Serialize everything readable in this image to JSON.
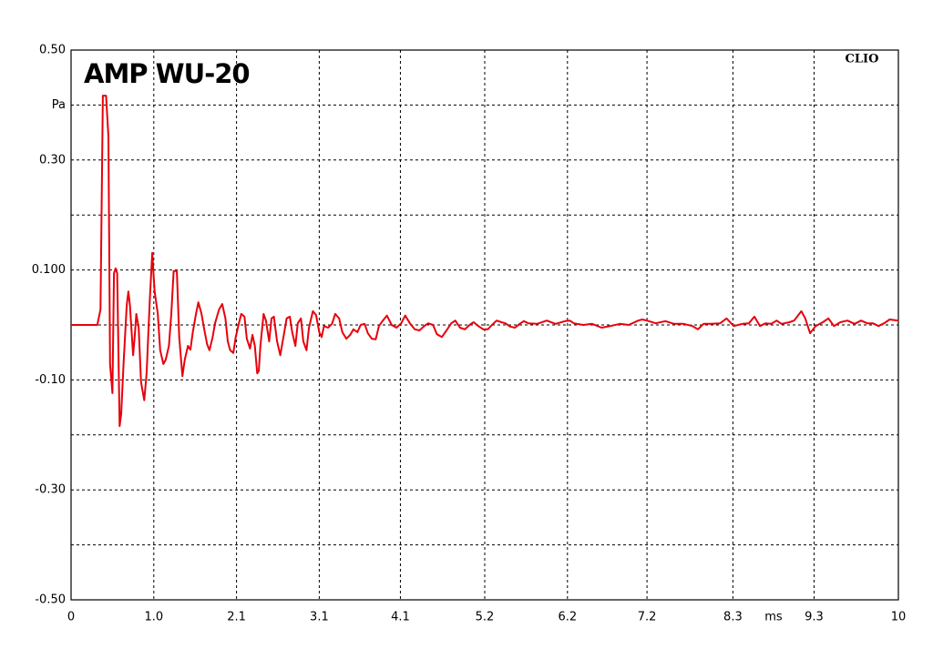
{
  "chart_data": {
    "type": "line",
    "title": "AMP WU-20",
    "annotation": "CLIO",
    "ylabel": "Pa",
    "xlabel": "ms",
    "color": "#e8000b",
    "grid": true,
    "xlim": [
      0,
      10.4
    ],
    "ylim": [
      -0.5,
      0.5
    ],
    "xticks": [
      0,
      {
        "value": 1.04,
        "label": "1.0"
      },
      {
        "value": 2.08,
        "label": "2.1"
      },
      {
        "value": 3.12,
        "label": "3.1"
      },
      {
        "value": 4.14,
        "label": "4.1"
      },
      {
        "value": 5.2,
        "label": "5.2"
      },
      {
        "value": 6.24,
        "label": "6.2"
      },
      {
        "value": 7.24,
        "label": "7.2"
      },
      {
        "value": 8.32,
        "label": "8.3"
      },
      {
        "value": 9.34,
        "label": "9.3"
      },
      {
        "value": 10.4,
        "label": "10"
      }
    ],
    "yticks": [
      {
        "value": 0.5,
        "label": "0.50"
      },
      {
        "value": 0.4,
        "label": null
      },
      {
        "value": 0.3,
        "label": "0.30"
      },
      {
        "value": 0.2,
        "label": null
      },
      {
        "value": 0.1,
        "label": "0.100"
      },
      {
        "value": 0,
        "label": null
      },
      {
        "value": -0.1,
        "label": "-0.10"
      },
      {
        "value": -0.2,
        "label": null
      },
      {
        "value": -0.3,
        "label": "-0.30"
      },
      {
        "value": -0.4,
        "label": null
      },
      {
        "value": -0.5,
        "label": "-0.50"
      }
    ],
    "x": [
      0.0,
      0.33,
      0.37,
      0.4,
      0.44,
      0.47,
      0.49,
      0.52,
      0.54,
      0.56,
      0.58,
      0.61,
      0.63,
      0.66,
      0.7,
      0.72,
      0.74,
      0.78,
      0.8,
      0.82,
      0.85,
      0.88,
      0.92,
      0.95,
      0.99,
      1.02,
      1.05,
      1.09,
      1.12,
      1.16,
      1.19,
      1.23,
      1.26,
      1.29,
      1.33,
      1.36,
      1.4,
      1.43,
      1.47,
      1.5,
      1.53,
      1.57,
      1.6,
      1.64,
      1.67,
      1.71,
      1.74,
      1.78,
      1.81,
      1.86,
      1.9,
      1.94,
      1.97,
      2.0,
      2.04,
      2.07,
      2.11,
      2.14,
      2.18,
      2.21,
      2.25,
      2.28,
      2.31,
      2.34,
      2.36,
      2.38,
      2.42,
      2.45,
      2.49,
      2.52,
      2.55,
      2.59,
      2.63,
      2.67,
      2.71,
      2.75,
      2.78,
      2.82,
      2.85,
      2.89,
      2.92,
      2.96,
      2.99,
      3.04,
      3.08,
      3.12,
      3.15,
      3.18,
      3.23,
      3.28,
      3.32,
      3.37,
      3.41,
      3.46,
      3.51,
      3.55,
      3.6,
      3.64,
      3.69,
      3.73,
      3.78,
      3.83,
      3.87,
      3.92,
      3.97,
      4.03,
      4.09,
      4.15,
      4.2,
      4.26,
      4.32,
      4.38,
      4.44,
      4.49,
      4.55,
      4.6,
      4.66,
      4.72,
      4.78,
      4.83,
      4.89,
      4.95,
      5.01,
      5.06,
      5.12,
      5.18,
      5.24,
      5.29,
      5.35,
      5.41,
      5.46,
      5.52,
      5.58,
      5.64,
      5.69,
      5.75,
      5.86,
      5.98,
      6.09,
      6.21,
      6.27,
      6.32,
      6.44,
      6.55,
      6.67,
      6.78,
      6.9,
      7.01,
      7.13,
      7.18,
      7.24,
      7.35,
      7.47,
      7.58,
      7.7,
      7.81,
      7.88,
      7.95,
      8.04,
      8.16,
      8.24,
      8.33,
      8.44,
      8.52,
      8.59,
      8.66,
      8.73,
      8.8,
      8.87,
      8.93,
      9.03,
      9.09,
      9.18,
      9.23,
      9.29,
      9.36,
      9.45,
      9.52,
      9.59,
      9.67,
      9.76,
      9.85,
      9.93,
      10.01,
      10.08,
      10.15,
      10.22,
      10.29,
      10.4
    ],
    "values": [
      0,
      0,
      0.028,
      0.417,
      0.417,
      0.343,
      -0.071,
      -0.124,
      0.094,
      0.103,
      0.094,
      -0.184,
      -0.162,
      -0.071,
      0.036,
      0.061,
      0.036,
      -0.055,
      -0.022,
      0.02,
      -0.005,
      -0.104,
      -0.137,
      -0.088,
      0.045,
      0.131,
      0.061,
      0.02,
      -0.046,
      -0.071,
      -0.063,
      -0.038,
      0.02,
      0.098,
      0.098,
      -0.022,
      -0.093,
      -0.063,
      -0.038,
      -0.045,
      -0.013,
      0.02,
      0.041,
      0.02,
      -0.005,
      -0.035,
      -0.046,
      -0.022,
      0.003,
      0.028,
      0.038,
      0.012,
      -0.03,
      -0.046,
      -0.051,
      -0.022,
      0.003,
      0.02,
      0.015,
      -0.025,
      -0.043,
      -0.018,
      -0.038,
      -0.088,
      -0.084,
      -0.038,
      0.02,
      0.008,
      -0.03,
      0.012,
      0.015,
      -0.03,
      -0.055,
      -0.022,
      0.012,
      0.015,
      -0.013,
      -0.038,
      0.003,
      0.012,
      -0.03,
      -0.046,
      -0.005,
      0.025,
      0.018,
      -0.013,
      -0.022,
      -0.002,
      -0.005,
      0.002,
      0.02,
      0.012,
      -0.013,
      -0.025,
      -0.018,
      -0.008,
      -0.013,
      0,
      0.002,
      -0.015,
      -0.025,
      -0.026,
      -0.002,
      0.008,
      0.017,
      0,
      -0.005,
      0.003,
      0.017,
      0.003,
      -0.008,
      -0.01,
      -0.002,
      0.003,
      0,
      -0.017,
      -0.022,
      -0.01,
      0.003,
      0.008,
      -0.005,
      -0.008,
      0,
      0.005,
      -0.002,
      -0.008,
      -0.008,
      0,
      0.008,
      0.005,
      0.003,
      -0.003,
      -0.005,
      0.002,
      0.007,
      0.003,
      0.002,
      0.008,
      0.002,
      0.007,
      0.008,
      0.003,
      0,
      0.002,
      -0.005,
      -0.002,
      0.002,
      0,
      0.008,
      0.01,
      0.008,
      0.003,
      0.007,
      0.002,
      0.002,
      -0.002,
      -0.008,
      0.002,
      0.002,
      0.003,
      0.012,
      -0.002,
      0.002,
      0.003,
      0.015,
      -0.002,
      0.003,
      0.002,
      0.008,
      0.002,
      0.005,
      0.008,
      0.025,
      0.012,
      -0.015,
      -0.002,
      0.005,
      0.012,
      -0.002,
      0.005,
      0.008,
      0.002,
      0.008,
      0.003,
      0.003,
      -0.002,
      0.003,
      0.01,
      0.008
    ]
  }
}
